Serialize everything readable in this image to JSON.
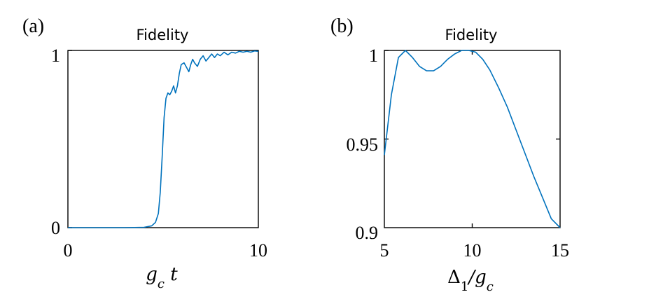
{
  "colors": {
    "line": "#0072BD",
    "axis": "#000000"
  },
  "panels": [
    {
      "label": "(a)"
    },
    {
      "label": "(b)"
    }
  ],
  "chart_data": [
    {
      "type": "line",
      "title": "Fidelity",
      "xlabel": "g_c t",
      "xlim": [
        0,
        10
      ],
      "ylim": [
        0,
        1
      ],
      "xticks": [
        "0",
        "10"
      ],
      "yticks": [
        "0",
        "1"
      ],
      "grid": false,
      "series": [
        {
          "x": [
            0,
            1,
            2,
            3,
            4,
            4.4,
            4.6,
            4.75,
            4.85,
            4.95,
            5.05,
            5.15,
            5.25,
            5.35,
            5.45,
            5.55,
            5.65,
            5.75,
            5.85,
            5.95,
            6.1,
            6.25,
            6.35,
            6.45,
            6.55,
            6.65,
            6.8,
            6.95,
            7.1,
            7.25,
            7.4,
            7.55,
            7.7,
            7.85,
            8.0,
            8.2,
            8.4,
            8.6,
            8.8,
            9.0,
            9.2,
            9.4,
            9.6,
            9.8,
            10.0
          ],
          "y": [
            0,
            0,
            0,
            0,
            0.002,
            0.01,
            0.03,
            0.08,
            0.2,
            0.4,
            0.62,
            0.73,
            0.76,
            0.75,
            0.77,
            0.8,
            0.76,
            0.8,
            0.87,
            0.92,
            0.93,
            0.9,
            0.88,
            0.92,
            0.95,
            0.93,
            0.91,
            0.95,
            0.97,
            0.94,
            0.96,
            0.98,
            0.96,
            0.98,
            0.97,
            0.99,
            0.975,
            0.99,
            0.985,
            0.995,
            0.99,
            0.995,
            0.99,
            0.997,
            0.995
          ]
        }
      ]
    },
    {
      "type": "line",
      "title": "Fidelity",
      "xlabel": "Δ_1/g_c",
      "xlim": [
        5,
        15
      ],
      "ylim": [
        0.9,
        1
      ],
      "xticks": [
        "5",
        "10",
        "15"
      ],
      "yticks": [
        "0.9",
        "0.95",
        "1"
      ],
      "grid": false,
      "series": [
        {
          "x": [
            5,
            5.4,
            5.8,
            6.2,
            6.6,
            7.0,
            7.4,
            7.8,
            8.2,
            8.6,
            9.0,
            9.4,
            9.8,
            10.2,
            10.6,
            11.0,
            11.5,
            12.0,
            12.5,
            13.0,
            13.5,
            14.0,
            14.5,
            15.0
          ],
          "y": [
            0.941,
            0.975,
            0.996,
            1.0,
            0.996,
            0.991,
            0.9885,
            0.9885,
            0.991,
            0.995,
            0.998,
            1.0,
            1.0,
            0.999,
            0.995,
            0.989,
            0.979,
            0.968,
            0.955,
            0.942,
            0.929,
            0.917,
            0.905,
            0.893
          ]
        }
      ]
    }
  ]
}
